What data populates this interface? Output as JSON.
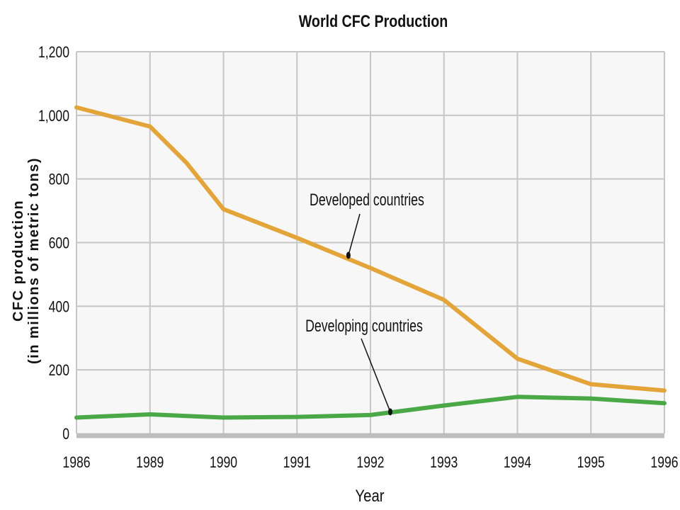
{
  "chart_data": {
    "type": "line",
    "title": "World CFC Production",
    "xlabel": "Year",
    "ylabel_line1": "CFC production",
    "ylabel_line2": "(in millions of metric tons)",
    "categories": [
      "1986",
      "1989",
      "1990",
      "1991",
      "1992",
      "1993",
      "1994",
      "1995",
      "1996"
    ],
    "ylim": [
      0,
      1200
    ],
    "yticks": [
      0,
      200,
      400,
      600,
      800,
      1000,
      1200
    ],
    "ytick_labels": [
      "0",
      "200",
      "400",
      "600",
      "800",
      "1,000",
      "1,200"
    ],
    "grid": true,
    "series": [
      {
        "name": "Developed countries",
        "color": "#e3a43a",
        "points": [
          {
            "x": 0,
            "y": 1025
          },
          {
            "x": 1,
            "y": 965
          },
          {
            "x": 1.5,
            "y": 850
          },
          {
            "x": 2,
            "y": 705
          },
          {
            "x": 3,
            "y": 615
          },
          {
            "x": 4,
            "y": 520
          },
          {
            "x": 5,
            "y": 420
          },
          {
            "x": 6,
            "y": 235
          },
          {
            "x": 7,
            "y": 155
          },
          {
            "x": 8,
            "y": 135
          }
        ]
      },
      {
        "name": "Developing countries",
        "color": "#4aa847",
        "points": [
          {
            "x": 0,
            "y": 50
          },
          {
            "x": 1,
            "y": 60
          },
          {
            "x": 2,
            "y": 50
          },
          {
            "x": 3,
            "y": 52
          },
          {
            "x": 4,
            "y": 58
          },
          {
            "x": 5,
            "y": 88
          },
          {
            "x": 6,
            "y": 115
          },
          {
            "x": 7,
            "y": 110
          },
          {
            "x": 8,
            "y": 95
          }
        ]
      }
    ],
    "annotations": [
      {
        "text": "Developed countries",
        "series": 0,
        "x": 3.7,
        "y": 560
      },
      {
        "text": "Developing countries",
        "series": 1,
        "x": 4.27,
        "y": 68
      }
    ]
  }
}
